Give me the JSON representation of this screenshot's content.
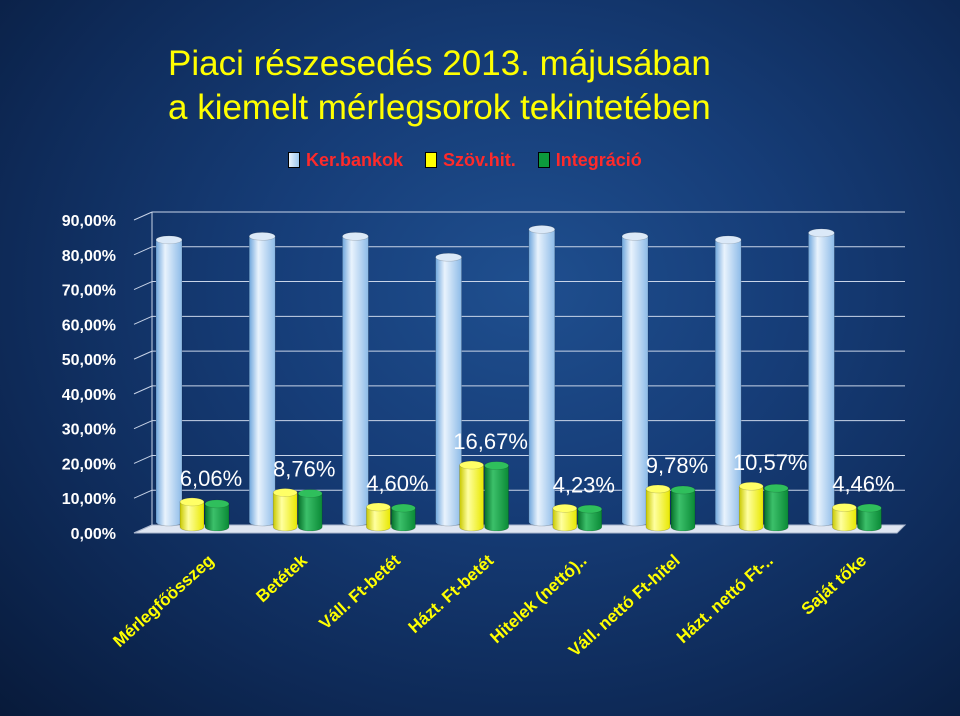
{
  "title": {
    "line1": "Piaci részesedés 2013. májusában",
    "line2": "a kiemelt mérlegsorok tekintetében"
  },
  "colors": {
    "ker_bankok": "#9cc7ee",
    "szov_hit": "#ffff00",
    "integracio": "#0c9a3c",
    "title": "#ffff00",
    "legend_text": "#ff2a2a",
    "tick_text": "#ffffff",
    "category_text": "#ffff00",
    "grid": "#c8d4e8"
  },
  "legend": [
    {
      "label": "Ker.bankok",
      "color": "#9cc7ee"
    },
    {
      "label": "Szöv.hit.",
      "color": "#ffff00"
    },
    {
      "label": "Integráció",
      "color": "#0c9a3c"
    }
  ],
  "chart_data": {
    "type": "bar",
    "variant": "3d-clustered-cylinder",
    "categories": [
      "Mérlegfőösszeg",
      "Betétek",
      "Váll. Ft-betét",
      "Házt. Ft-betét",
      "Hitelek (nettó)..",
      "Váll. nettó Ft-hitel",
      "Házt. nettó Ft-..",
      "Saját tőke"
    ],
    "series": [
      {
        "name": "Ker.bankok",
        "values": [
          82,
          83,
          83,
          77,
          85,
          83,
          82,
          84
        ]
      },
      {
        "name": "Szöv.hit.",
        "values": [
          6.06,
          8.76,
          4.6,
          16.67,
          4.23,
          9.78,
          10.57,
          4.46
        ]
      },
      {
        "name": "Integráció",
        "values": [
          5.5,
          8.5,
          4.3,
          16.5,
          4.0,
          9.5,
          10.0,
          4.3
        ]
      }
    ],
    "data_labels": [
      "6,06%",
      "8,76%",
      "4,60%",
      "16,67%",
      "4,23%",
      "9,78%",
      "10,57%",
      "4,46%"
    ],
    "ylim": [
      0,
      90
    ],
    "yticks": [
      "0,00%",
      "10,00%",
      "20,00%",
      "30,00%",
      "40,00%",
      "50,00%",
      "60,00%",
      "70,00%",
      "80,00%",
      "90,00%"
    ],
    "grid": true,
    "legend_position": "top"
  }
}
